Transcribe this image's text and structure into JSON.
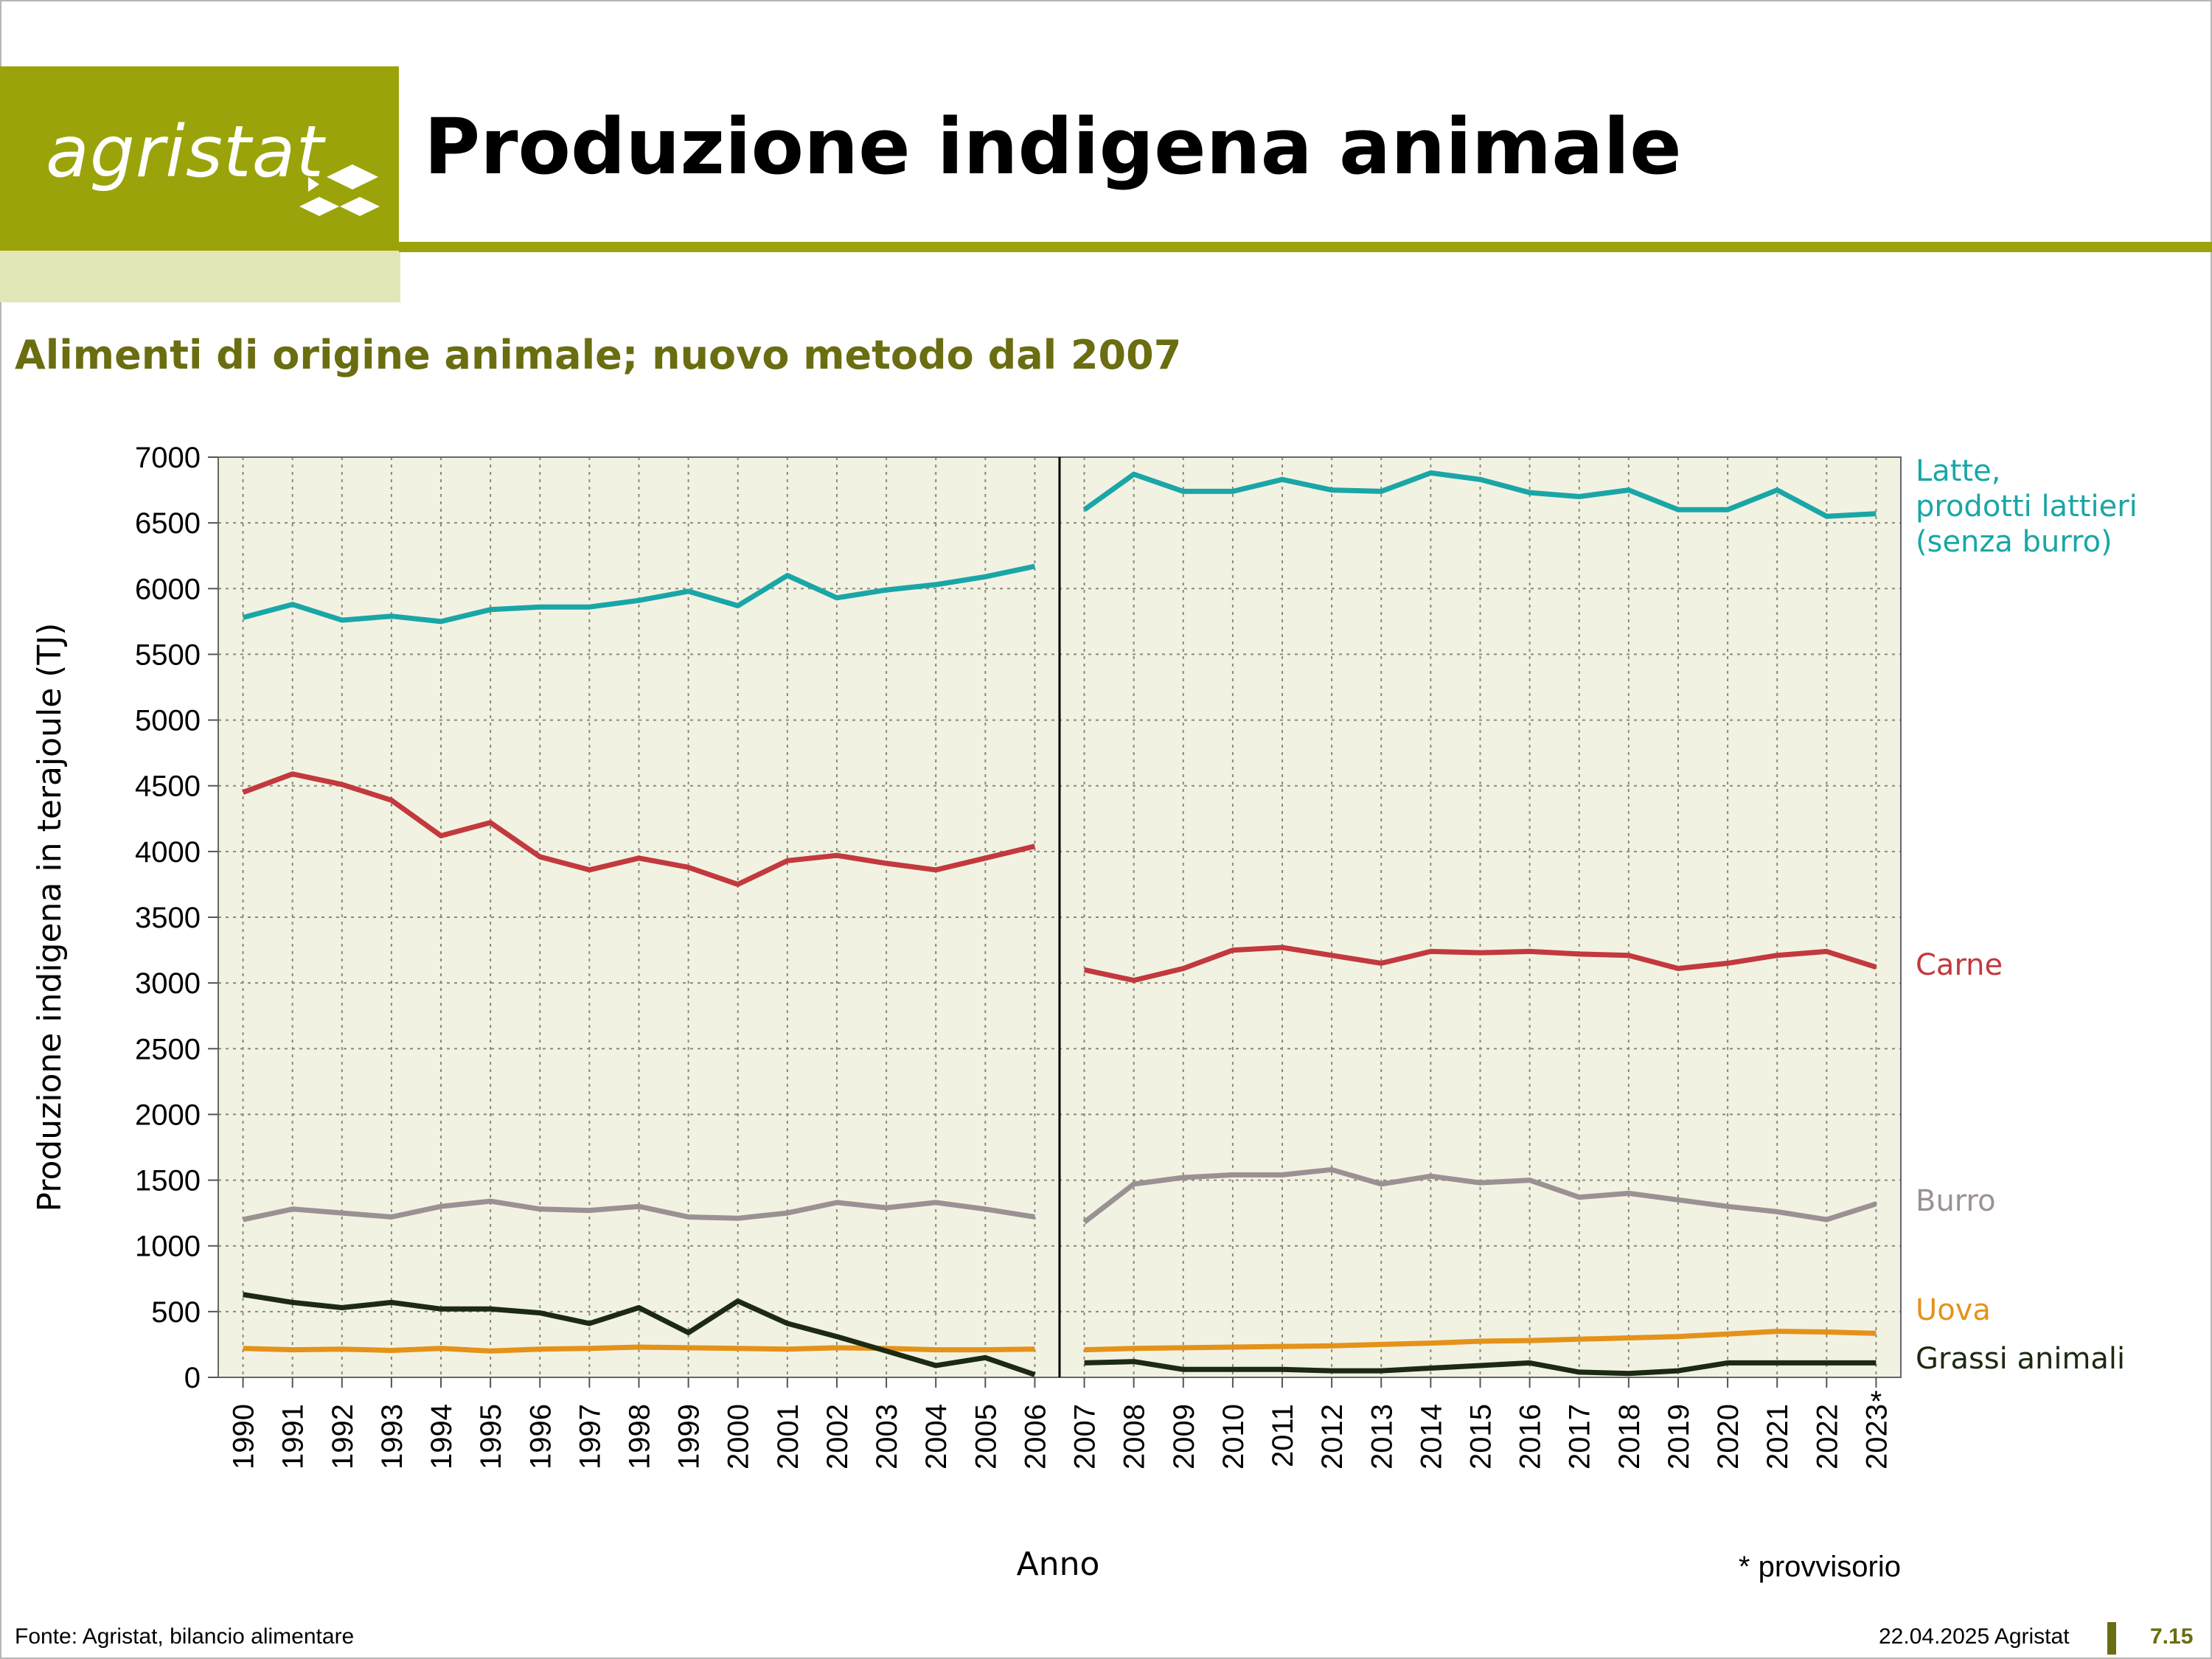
{
  "header": {
    "logo_text": "agristat",
    "title": "Produzione indigena animale"
  },
  "subtitle": "Alimenti di origine animale; nuovo metodo dal 2007",
  "footer": {
    "source": "Fonte: Agristat, bilancio alimentare",
    "date": "22.04.2025 Agristat",
    "page": "7.15"
  },
  "colors": {
    "brand": "#9aa40a",
    "brand_dark": "#6a6d10",
    "plot_bg": "#f2f2e2",
    "latte": "#1aa6a6",
    "carne": "#c2393e",
    "burro": "#9b9193",
    "uova": "#e4921a",
    "grassi": "#1d2a12"
  },
  "chart_data": {
    "type": "line",
    "title": "Alimenti di origine animale; nuovo metodo dal 2007",
    "xlabel": "Anno",
    "ylabel": "Produzione indigena in terajoule (TJ)",
    "ylim": [
      0,
      7000
    ],
    "yticks": [
      "0",
      "500",
      "1000",
      "1500",
      "2000",
      "2500",
      "3000",
      "3500",
      "4000",
      "4500",
      "5000",
      "5500",
      "6000",
      "6500",
      "7000"
    ],
    "grid": true,
    "method_break_after": "2006",
    "provisional_year": "2023",
    "provisional_marker": "*",
    "footnote": "* provvisorio",
    "categories": [
      "1990",
      "1991",
      "1992",
      "1993",
      "1994",
      "1995",
      "1996",
      "1997",
      "1998",
      "1999",
      "2000",
      "2001",
      "2002",
      "2003",
      "2004",
      "2005",
      "2006",
      "2007",
      "2008",
      "2009",
      "2010",
      "2011",
      "2012",
      "2013",
      "2014",
      "2015",
      "2016",
      "2017",
      "2018",
      "2019",
      "2020",
      "2021",
      "2022",
      "2023"
    ],
    "series": [
      {
        "name": "Latte, prodotti lattieri (senza burro)",
        "label_lines": [
          "Latte,",
          "prodotti lattieri",
          "(senza burro)"
        ],
        "color_key": "latte",
        "values": [
          5780,
          5880,
          5760,
          5790,
          5750,
          5840,
          5860,
          5860,
          5910,
          5980,
          5870,
          6100,
          5930,
          5990,
          6030,
          6090,
          6170,
          6600,
          6870,
          6740,
          6740,
          6830,
          6750,
          6740,
          6880,
          6830,
          6730,
          6700,
          6750,
          6600,
          6600,
          6750,
          6550,
          6570
        ]
      },
      {
        "name": "Carne",
        "label_lines": [
          "Carne"
        ],
        "color_key": "carne",
        "values": [
          4450,
          4590,
          4510,
          4390,
          4120,
          4220,
          3960,
          3860,
          3950,
          3880,
          3750,
          3930,
          3970,
          3910,
          3860,
          3950,
          4040,
          3100,
          3020,
          3110,
          3250,
          3270,
          3210,
          3150,
          3240,
          3230,
          3240,
          3220,
          3210,
          3110,
          3150,
          3210,
          3240,
          3120
        ]
      },
      {
        "name": "Burro",
        "label_lines": [
          "Burro"
        ],
        "color_key": "burro",
        "values": [
          1200,
          1280,
          1250,
          1220,
          1300,
          1340,
          1280,
          1270,
          1300,
          1220,
          1210,
          1250,
          1330,
          1290,
          1330,
          1280,
          1220,
          1180,
          1470,
          1520,
          1540,
          1540,
          1580,
          1470,
          1530,
          1480,
          1500,
          1370,
          1400,
          1350,
          1300,
          1260,
          1200,
          1320
        ]
      },
      {
        "name": "Uova",
        "label_lines": [
          "Uova"
        ],
        "color_key": "uova",
        "values": [
          220,
          210,
          215,
          205,
          220,
          200,
          215,
          220,
          230,
          225,
          220,
          215,
          225,
          220,
          210,
          210,
          215,
          210,
          220,
          225,
          230,
          235,
          240,
          250,
          260,
          275,
          280,
          290,
          300,
          310,
          330,
          350,
          345,
          335
        ]
      },
      {
        "name": "Grassi animali",
        "label_lines": [
          "Grassi animali"
        ],
        "color_key": "grassi",
        "values": [
          630,
          570,
          530,
          570,
          520,
          520,
          490,
          410,
          530,
          340,
          580,
          410,
          310,
          200,
          90,
          150,
          20,
          110,
          120,
          60,
          60,
          60,
          50,
          50,
          70,
          90,
          110,
          40,
          30,
          50,
          110,
          110,
          110,
          110
        ]
      }
    ]
  }
}
